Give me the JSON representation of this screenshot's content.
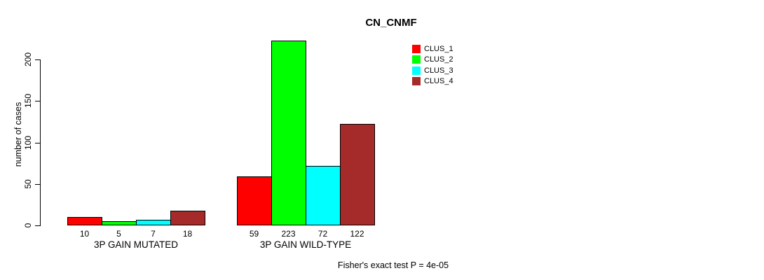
{
  "chart_data": {
    "type": "bar",
    "title": "CN_CNMF",
    "ylabel": "number of cases",
    "xlabel": "",
    "ylim": [
      0,
      200
    ],
    "yticks": [
      0,
      50,
      100,
      150,
      200
    ],
    "grid": false,
    "legend_position": "top-right",
    "categories": [
      "3P GAIN MUTATED",
      "3P GAIN WILD-TYPE"
    ],
    "series": [
      {
        "name": "CLUS_1",
        "color": "#ff0000",
        "values": [
          10,
          59
        ]
      },
      {
        "name": "CLUS_2",
        "color": "#00ff00",
        "values": [
          5,
          223
        ]
      },
      {
        "name": "CLUS_3",
        "color": "#00ffff",
        "values": [
          7,
          72
        ]
      },
      {
        "name": "CLUS_4",
        "color": "#a52a2a",
        "values": [
          18,
          122
        ]
      }
    ],
    "bar_value_labels": [
      [
        10,
        5,
        7,
        18
      ],
      [
        59,
        223,
        72,
        122
      ]
    ],
    "annotation": "Fisher's exact test P = 4e-05"
  }
}
